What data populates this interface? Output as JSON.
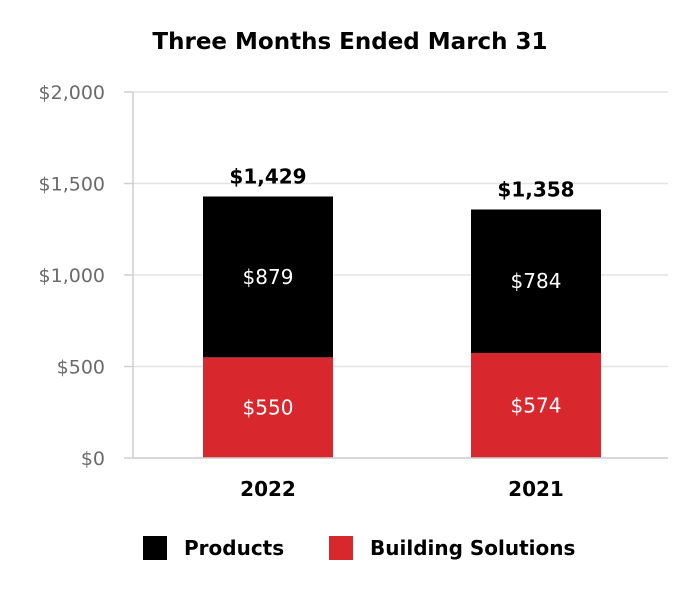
{
  "chart_data": {
    "type": "bar",
    "stacked": true,
    "title": "Three Months Ended March 31",
    "categories": [
      "2022",
      "2021"
    ],
    "series": [
      {
        "name": "Building Solutions",
        "values": [
          550,
          574
        ],
        "color": "#d9272e",
        "labels": [
          "$550",
          "$574"
        ]
      },
      {
        "name": "Products",
        "values": [
          879,
          784
        ],
        "color": "#000000",
        "labels": [
          "$879",
          "$784"
        ]
      }
    ],
    "totals": [
      1429,
      1358
    ],
    "total_labels": [
      "$1,429",
      "$1,358"
    ],
    "ylim": [
      0,
      2000
    ],
    "yticks": [
      0,
      500,
      1000,
      1500,
      2000
    ],
    "ytick_labels": [
      "$0",
      "$500",
      "$1,000",
      "$1,500",
      "$2,000"
    ],
    "grid": true,
    "legend": [
      "Products",
      "Building Solutions"
    ],
    "legend_position": "bottom"
  }
}
